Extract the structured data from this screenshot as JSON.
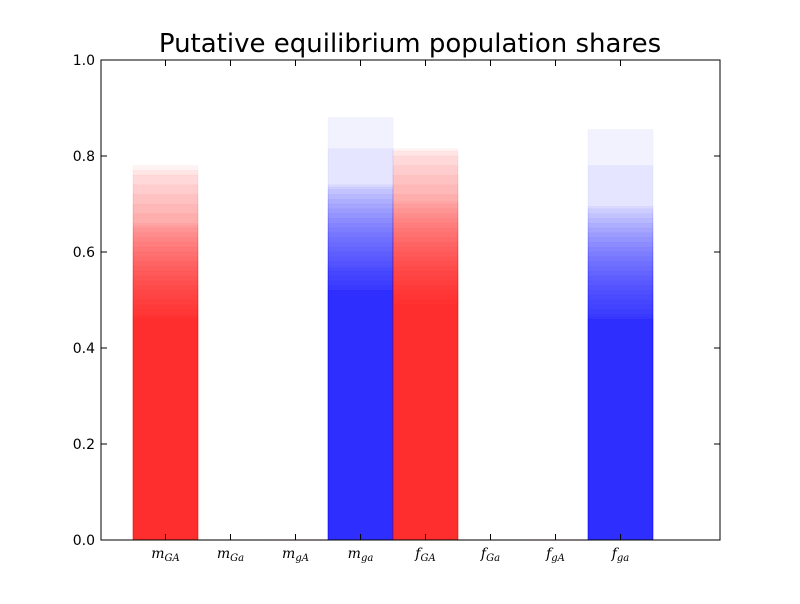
{
  "chart_data": {
    "type": "bar",
    "title": "Putative equilibrium population shares",
    "xlabel": "",
    "ylabel": "",
    "ylim": [
      0,
      1.0
    ],
    "yticks": [
      "0.0",
      "0.2",
      "0.4",
      "0.6",
      "0.8",
      "1.0"
    ],
    "grid": false,
    "legend": "none",
    "categories": [
      {
        "base": "m",
        "sub": "GA"
      },
      {
        "base": "m",
        "sub": "Ga"
      },
      {
        "base": "m",
        "sub": "gA"
      },
      {
        "base": "m",
        "sub": "ga"
      },
      {
        "base": "f",
        "sub": "GA"
      },
      {
        "base": "f",
        "sub": "Ga"
      },
      {
        "base": "f",
        "sub": "gA"
      },
      {
        "base": "f",
        "sub": "ga"
      }
    ],
    "colors": [
      "#ff0000",
      "#000000",
      "#ff0000",
      "#0000ff",
      "#ff0000",
      "#000000",
      "#ff0000",
      "#0000ff"
    ],
    "alpha": 0.05,
    "series_values": [
      [
        0.78,
        0.77,
        0.76,
        0.74,
        0.72,
        0.7,
        0.68,
        0.66,
        0.655,
        0.65,
        0.64,
        0.63,
        0.62,
        0.61,
        0.6,
        0.59,
        0.58,
        0.57,
        0.56,
        0.55,
        0.54,
        0.53,
        0.52,
        0.51,
        0.5,
        0.49,
        0.48,
        0.47,
        0.465,
        0.46
      ],
      [
        0.001
      ],
      [
        0.001
      ],
      [
        0.88,
        0.815,
        0.74,
        0.735,
        0.73,
        0.72,
        0.71,
        0.7,
        0.69,
        0.68,
        0.67,
        0.66,
        0.65,
        0.64,
        0.63,
        0.62,
        0.61,
        0.6,
        0.59,
        0.58,
        0.57,
        0.565,
        0.56,
        0.55,
        0.54,
        0.53,
        0.52,
        0.52,
        0.52,
        0.52
      ],
      [
        0.815,
        0.81,
        0.8,
        0.78,
        0.76,
        0.74,
        0.72,
        0.705,
        0.7,
        0.69,
        0.68,
        0.67,
        0.66,
        0.65,
        0.64,
        0.63,
        0.62,
        0.61,
        0.6,
        0.59,
        0.58,
        0.57,
        0.56,
        0.55,
        0.54,
        0.53,
        0.52,
        0.51,
        0.5,
        0.49
      ],
      [
        0.001
      ],
      [
        0.001
      ],
      [
        0.855,
        0.78,
        0.695,
        0.69,
        0.68,
        0.67,
        0.66,
        0.65,
        0.64,
        0.63,
        0.62,
        0.61,
        0.6,
        0.59,
        0.58,
        0.57,
        0.56,
        0.55,
        0.54,
        0.53,
        0.52,
        0.51,
        0.5,
        0.49,
        0.48,
        0.47,
        0.465,
        0.46,
        0.46,
        0.46
      ]
    ]
  }
}
